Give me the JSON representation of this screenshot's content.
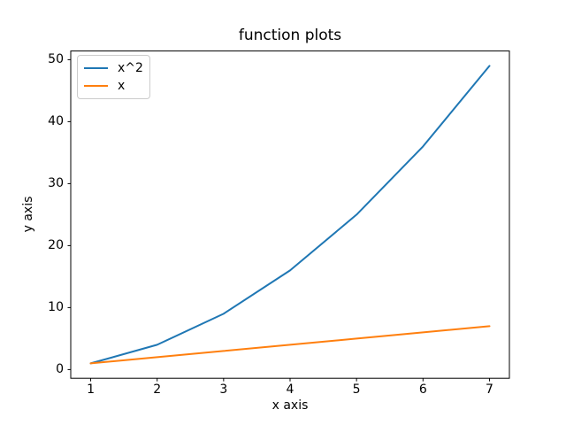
{
  "figure": {
    "background": "#ffffff",
    "frame_color": "#000000",
    "text_color": "#000000"
  },
  "chart_data": {
    "type": "line",
    "title": "function plots",
    "xlabel": "x axis",
    "ylabel": "y axis",
    "x": [
      1,
      2,
      3,
      4,
      5,
      6,
      7
    ],
    "series": [
      {
        "name": "x^2",
        "color": "#1f77b4",
        "values": [
          1,
          4,
          9,
          16,
          25,
          36,
          49
        ]
      },
      {
        "name": "x",
        "color": "#ff7f0e",
        "values": [
          1,
          2,
          3,
          4,
          5,
          6,
          7
        ]
      }
    ],
    "xlim": [
      0.7,
      7.3
    ],
    "ylim": [
      -1.4,
      51.4
    ],
    "xticks": [
      1,
      2,
      3,
      4,
      5,
      6,
      7
    ],
    "yticks": [
      0,
      10,
      20,
      30,
      40,
      50
    ],
    "grid": false,
    "legend": {
      "position": "upper left"
    }
  }
}
